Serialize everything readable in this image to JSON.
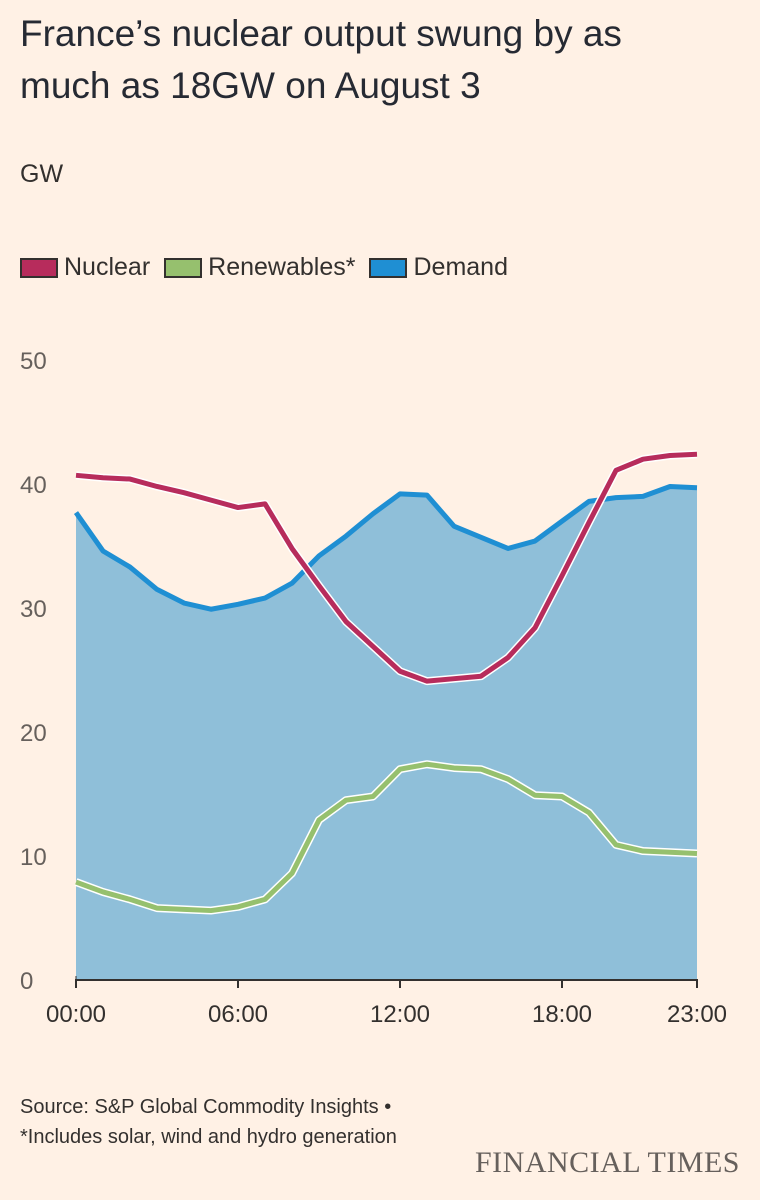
{
  "title": "France’s nuclear output swung by as much as 18GW on August 3",
  "unit_label": "GW",
  "legend": [
    {
      "label": "Nuclear",
      "color": "#b72c5c"
    },
    {
      "label": "Renewables*",
      "color": "#96c06e"
    },
    {
      "label": "Demand",
      "color": "#1f8fd3"
    }
  ],
  "chart_data": {
    "type": "line",
    "title": "France’s nuclear output swung by as much as 18GW on August 3",
    "ylabel": "GW",
    "xlabel": "",
    "ylim": [
      0,
      50
    ],
    "y_ticks": [
      0,
      10,
      20,
      30,
      40,
      50
    ],
    "x_tick_labels": [
      "00:00",
      "06:00",
      "12:00",
      "18:00",
      "23:00"
    ],
    "x_tick_hours": [
      0,
      6,
      12,
      18,
      23
    ],
    "x": [
      0,
      1,
      2,
      3,
      4,
      5,
      6,
      7,
      8,
      9,
      10,
      11,
      12,
      13,
      14,
      15,
      16,
      17,
      18,
      19,
      20,
      21,
      22,
      23
    ],
    "series": [
      {
        "name": "Nuclear",
        "style": "line",
        "color": "#b72c5c",
        "values": [
          40.7,
          40.5,
          40.4,
          39.8,
          39.3,
          38.7,
          38.1,
          38.4,
          34.8,
          31.8,
          28.9,
          26.9,
          24.9,
          24.1,
          24.3,
          24.5,
          26.0,
          28.4,
          32.6,
          36.9,
          41.1,
          42.0,
          42.3,
          42.4
        ]
      },
      {
        "name": "Renewables*",
        "style": "line",
        "color": "#96c06e",
        "values": [
          7.9,
          7.1,
          6.5,
          5.8,
          5.7,
          5.6,
          5.9,
          6.5,
          8.6,
          12.9,
          14.5,
          14.8,
          17.0,
          17.4,
          17.1,
          17.0,
          16.2,
          14.9,
          14.8,
          13.5,
          10.9,
          10.4,
          10.3,
          10.2
        ]
      },
      {
        "name": "Demand",
        "style": "area",
        "color": "#1f8fd3",
        "fill": "#8fbfd9",
        "values": [
          37.7,
          34.6,
          33.3,
          31.5,
          30.4,
          29.9,
          30.3,
          30.8,
          32.0,
          34.2,
          35.8,
          37.6,
          39.2,
          39.1,
          36.6,
          35.7,
          34.8,
          35.4,
          37.0,
          38.6,
          38.9,
          39.0,
          39.8,
          39.7
        ]
      }
    ]
  },
  "footer": {
    "source": "Source: S&P Global Commodity Insights • *Includes solar, wind and hydro generation"
  },
  "brand": "FINANCIAL TIMES"
}
